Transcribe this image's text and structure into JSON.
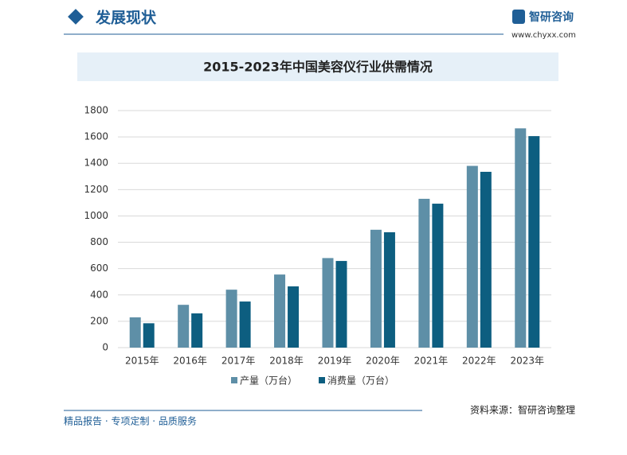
{
  "header": {
    "section": "发展现状",
    "brand": "智研咨询",
    "url": "www.chyxx.com"
  },
  "chart_data": {
    "type": "bar",
    "title": "2015-2023年中国美容仪行业供需情况",
    "categories": [
      "2015年",
      "2016年",
      "2017年",
      "2018年",
      "2019年",
      "2020年",
      "2021年",
      "2022年",
      "2023年"
    ],
    "series": [
      {
        "name": "产量（万台）",
        "color": "#5e8fa7",
        "values": [
          230,
          325,
          440,
          555,
          680,
          895,
          1130,
          1380,
          1665
        ]
      },
      {
        "name": "消费量（万台）",
        "color": "#0d5e80",
        "values": [
          185,
          260,
          350,
          465,
          658,
          876,
          1093,
          1335,
          1606
        ]
      }
    ],
    "ylim": [
      0,
      1800
    ],
    "yticks": [
      0,
      200,
      400,
      600,
      800,
      1000,
      1200,
      1400,
      1600,
      1800
    ],
    "grid": true
  },
  "footer": {
    "slogan": "精品报告 · 专项定制 · 品质服务",
    "source": "资料来源：智研咨询整理"
  }
}
